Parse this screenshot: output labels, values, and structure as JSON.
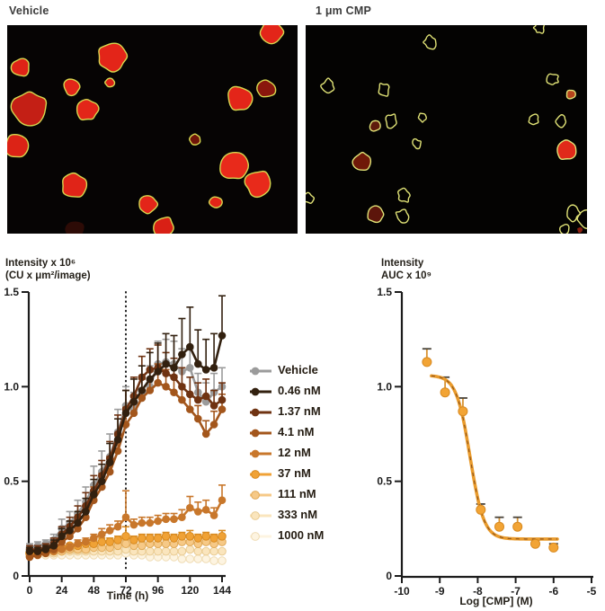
{
  "figure": {
    "panels": [
      {
        "title": "Vehicle",
        "background": "#060404",
        "outline_color": "#d6d74f",
        "blobs": [
          [
            117,
            35,
            16,
            "#e32519",
            1
          ],
          [
            294,
            8,
            13,
            "#e32519",
            1
          ],
          [
            15,
            47,
            10,
            "#df2317",
            1
          ],
          [
            72,
            69,
            9,
            "#e32519",
            1
          ],
          [
            114,
            64,
            5,
            "#d92015",
            1
          ],
          [
            25,
            93,
            19,
            "#c41f15",
            1
          ],
          [
            89,
            94,
            12,
            "#e32519",
            1
          ],
          [
            259,
            82,
            14,
            "#e32519",
            1
          ],
          [
            288,
            71,
            10,
            "#8a170d",
            1
          ],
          [
            10,
            135,
            13,
            "#dc2316",
            1
          ],
          [
            209,
            127,
            6,
            "#701509",
            1
          ],
          [
            75,
            179,
            14,
            "#e02418",
            1
          ],
          [
            252,
            157,
            15,
            "#e82a1b",
            1
          ],
          [
            279,
            176,
            14,
            "#e82a1b",
            1
          ],
          [
            157,
            199,
            10,
            "#e32519",
            1
          ],
          [
            232,
            197,
            7,
            "#e02418",
            1
          ],
          [
            174,
            225,
            12,
            "#d92015",
            1
          ],
          [
            75,
            228,
            11,
            "#2d0b06",
            0
          ]
        ]
      },
      {
        "title": "1 μm CMP",
        "background": "#040302",
        "outline_color": "#e0e276",
        "blobs": [
          [
            138,
            19,
            7,
            "",
            1
          ],
          [
            260,
            3,
            6,
            "",
            1
          ],
          [
            25,
            67,
            7,
            "",
            1
          ],
          [
            87,
            72,
            7,
            "",
            1
          ],
          [
            275,
            60,
            6,
            "",
            1
          ],
          [
            295,
            77,
            5,
            "#b5431c",
            1
          ],
          [
            77,
            112,
            6,
            "#5e1a0c",
            1
          ],
          [
            95,
            106,
            8,
            "",
            1
          ],
          [
            130,
            103,
            5,
            "",
            1
          ],
          [
            253,
            105,
            6,
            "",
            1
          ],
          [
            285,
            107,
            6,
            "",
            1
          ],
          [
            123,
            132,
            5,
            "",
            1
          ],
          [
            290,
            139,
            11,
            "#e02a1a",
            1
          ],
          [
            63,
            152,
            10,
            "#6f1808",
            1
          ],
          [
            110,
            190,
            7,
            "",
            1
          ],
          [
            2,
            192,
            6,
            "",
            1
          ],
          [
            78,
            211,
            9,
            "#5c150b",
            1
          ],
          [
            107,
            212,
            7,
            "",
            1
          ],
          [
            297,
            210,
            8,
            "",
            1
          ],
          [
            311,
            216,
            9,
            "",
            1
          ],
          [
            288,
            227,
            5,
            "",
            1
          ],
          [
            305,
            228,
            3,
            "#8a1f10",
            0
          ]
        ]
      }
    ]
  },
  "chart_data": [
    {
      "type": "line",
      "ylabel_lines": [
        "Intensity x 10⁶",
        "(CU x μm²/image)"
      ],
      "xlabel": "Time (h)",
      "xlim": [
        0,
        148
      ],
      "ylim": [
        0,
        1.5
      ],
      "xtick_vals": [
        0,
        24,
        48,
        72,
        96,
        120,
        144
      ],
      "xtick_labels": [
        "0",
        "24",
        "48",
        "72",
        "96",
        "120",
        "144"
      ],
      "ytick_vals": [
        0,
        0.5,
        1.0,
        1.5
      ],
      "ytick_labels": [
        "0",
        "0.5",
        "1.0",
        "1.5"
      ],
      "vline_x": 72,
      "grid": false,
      "legend_position": "right",
      "x": [
        0,
        6,
        12,
        18,
        24,
        30,
        36,
        42,
        48,
        54,
        60,
        66,
        72,
        78,
        84,
        90,
        96,
        102,
        108,
        114,
        120,
        126,
        132,
        138,
        144
      ],
      "series": [
        {
          "name": "Vehicle",
          "color": "#9b9b9b",
          "values": [
            0.15,
            0.16,
            0.17,
            0.19,
            0.25,
            0.28,
            0.33,
            0.39,
            0.48,
            0.55,
            0.63,
            0.76,
            0.9,
            0.88,
            0.94,
            1.0,
            1.12,
            1.13,
            1.12,
            1.08,
            1.1,
            0.97,
            0.92,
            0.97,
            1.0
          ],
          "err": [
            0.02,
            0.02,
            0.02,
            0.03,
            0.05,
            0.06,
            0.07,
            0.08,
            0.1,
            0.11,
            0.12,
            0.12,
            0.1,
            0.09,
            0.1,
            0.11,
            0.12,
            0.12,
            0.12,
            0.12,
            0.1,
            0.1,
            0.1,
            0.1,
            0.1
          ]
        },
        {
          "name": "0.46 nM",
          "color": "#32200f",
          "values": [
            0.13,
            0.13,
            0.14,
            0.16,
            0.21,
            0.24,
            0.28,
            0.34,
            0.43,
            0.5,
            0.6,
            0.72,
            0.86,
            0.92,
            0.98,
            1.04,
            1.08,
            1.12,
            1.1,
            1.17,
            1.21,
            1.12,
            1.09,
            1.1,
            1.27
          ],
          "err": [
            0.02,
            0.02,
            0.02,
            0.03,
            0.04,
            0.05,
            0.06,
            0.07,
            0.08,
            0.09,
            0.1,
            0.11,
            0.12,
            0.12,
            0.13,
            0.14,
            0.15,
            0.16,
            0.17,
            0.19,
            0.21,
            0.18,
            0.16,
            0.18,
            0.21
          ]
        },
        {
          "name": "1.37 nM",
          "color": "#6f3312",
          "values": [
            0.14,
            0.14,
            0.15,
            0.17,
            0.22,
            0.26,
            0.31,
            0.37,
            0.45,
            0.53,
            0.62,
            0.75,
            0.88,
            0.95,
            1.05,
            1.09,
            1.1,
            1.07,
            1.05,
            1.0,
            0.96,
            0.93,
            0.95,
            0.9,
            0.93
          ],
          "err": [
            0.02,
            0.02,
            0.02,
            0.03,
            0.04,
            0.05,
            0.06,
            0.07,
            0.08,
            0.08,
            0.09,
            0.1,
            0.1,
            0.1,
            0.11,
            0.11,
            0.12,
            0.11,
            0.1,
            0.1,
            0.09,
            0.09,
            0.09,
            0.08,
            0.09
          ]
        },
        {
          "name": "4.1 nM",
          "color": "#a3561c",
          "values": [
            0.1,
            0.11,
            0.12,
            0.14,
            0.18,
            0.21,
            0.25,
            0.31,
            0.4,
            0.47,
            0.55,
            0.66,
            0.8,
            0.86,
            0.94,
            0.98,
            1.02,
            1.0,
            0.97,
            0.93,
            0.88,
            0.83,
            0.75,
            0.8,
            0.88
          ],
          "err": [
            0.02,
            0.02,
            0.02,
            0.02,
            0.03,
            0.04,
            0.05,
            0.06,
            0.07,
            0.07,
            0.08,
            0.08,
            0.09,
            0.09,
            0.1,
            0.1,
            0.1,
            0.09,
            0.09,
            0.08,
            0.08,
            0.07,
            0.07,
            0.07,
            0.08
          ]
        },
        {
          "name": "12 nM",
          "color": "#c8772b",
          "values": [
            0.1,
            0.11,
            0.12,
            0.13,
            0.14,
            0.15,
            0.17,
            0.18,
            0.2,
            0.22,
            0.24,
            0.26,
            0.31,
            0.27,
            0.28,
            0.28,
            0.29,
            0.3,
            0.3,
            0.31,
            0.36,
            0.34,
            0.35,
            0.32,
            0.4
          ],
          "err": [
            0.01,
            0.01,
            0.01,
            0.01,
            0.02,
            0.02,
            0.02,
            0.02,
            0.02,
            0.03,
            0.03,
            0.03,
            0.14,
            0.03,
            0.03,
            0.03,
            0.03,
            0.03,
            0.03,
            0.04,
            0.06,
            0.05,
            0.05,
            0.04,
            0.08
          ]
        },
        {
          "name": "37 nM",
          "color": "#f0a236",
          "values": [
            0.12,
            0.13,
            0.13,
            0.14,
            0.15,
            0.16,
            0.16,
            0.17,
            0.17,
            0.18,
            0.18,
            0.19,
            0.21,
            0.19,
            0.2,
            0.2,
            0.2,
            0.21,
            0.2,
            0.21,
            0.21,
            0.2,
            0.21,
            0.2,
            0.21
          ],
          "err": [
            0.01,
            0.01,
            0.01,
            0.01,
            0.01,
            0.01,
            0.01,
            0.02,
            0.02,
            0.02,
            0.02,
            0.02,
            0.05,
            0.02,
            0.02,
            0.02,
            0.02,
            0.02,
            0.02,
            0.02,
            0.03,
            0.02,
            0.02,
            0.02,
            0.03
          ],
          "pstroke": "#d88a20"
        },
        {
          "name": "111 nM",
          "color": "#f6c987",
          "values": [
            0.12,
            0.12,
            0.13,
            0.13,
            0.13,
            0.14,
            0.14,
            0.14,
            0.15,
            0.15,
            0.15,
            0.16,
            0.17,
            0.16,
            0.16,
            0.17,
            0.17,
            0.17,
            0.17,
            0.18,
            0.18,
            0.17,
            0.18,
            0.17,
            0.18
          ],
          "err": [
            0.01,
            0.01,
            0.01,
            0.01,
            0.01,
            0.01,
            0.01,
            0.01,
            0.01,
            0.01,
            0.01,
            0.01,
            0.02,
            0.02,
            0.02,
            0.02,
            0.02,
            0.02,
            0.02,
            0.02,
            0.02,
            0.02,
            0.02,
            0.02,
            0.02
          ],
          "pstroke": "#e0a957"
        },
        {
          "name": "333 nM",
          "color": "#fae5bd",
          "values": [
            0.12,
            0.12,
            0.12,
            0.12,
            0.13,
            0.13,
            0.13,
            0.13,
            0.13,
            0.13,
            0.13,
            0.13,
            0.14,
            0.13,
            0.13,
            0.13,
            0.13,
            0.13,
            0.13,
            0.13,
            0.14,
            0.13,
            0.13,
            0.13,
            0.13
          ],
          "err": [
            0.01,
            0.01,
            0.01,
            0.01,
            0.01,
            0.01,
            0.01,
            0.01,
            0.01,
            0.01,
            0.01,
            0.01,
            0.01,
            0.01,
            0.01,
            0.01,
            0.01,
            0.01,
            0.01,
            0.01,
            0.01,
            0.01,
            0.01,
            0.01,
            0.01
          ],
          "pstroke": "#e9cb92"
        },
        {
          "name": "1000 nM",
          "color": "#fdf4e1",
          "values": [
            0.11,
            0.11,
            0.11,
            0.11,
            0.11,
            0.11,
            0.11,
            0.11,
            0.11,
            0.11,
            0.11,
            0.11,
            0.12,
            0.11,
            0.11,
            0.1,
            0.1,
            0.1,
            0.1,
            0.09,
            0.09,
            0.09,
            0.09,
            0.08,
            0.08
          ],
          "err": [
            0.01,
            0.01,
            0.01,
            0.01,
            0.01,
            0.01,
            0.01,
            0.01,
            0.01,
            0.01,
            0.01,
            0.01,
            0.01,
            0.01,
            0.01,
            0.01,
            0.01,
            0.01,
            0.01,
            0.01,
            0.01,
            0.01,
            0.01,
            0.01,
            0.01
          ],
          "pstroke": "#efdcb4"
        }
      ]
    },
    {
      "type": "scatter",
      "ylabel_lines": [
        "Intensity",
        "AUC x 10⁹"
      ],
      "xlabel": "Log [CMP] (M)",
      "xlim": [
        -10,
        -5
      ],
      "ylim": [
        0,
        1.5
      ],
      "xtick_vals": [
        -10,
        -9,
        -8,
        -7,
        -6,
        -5
      ],
      "xtick_labels": [
        "-10",
        "-9",
        "-8",
        "-7",
        "-6",
        "-5"
      ],
      "ytick_vals": [
        0,
        0.5,
        1.0,
        1.5
      ],
      "ytick_labels": [
        "0",
        "0.5",
        "1.0",
        "1.5"
      ],
      "grid": false,
      "points": {
        "x": [
          -9.34,
          -8.86,
          -8.39,
          -7.92,
          -7.43,
          -6.95,
          -6.48,
          -6.0
        ],
        "y": [
          1.13,
          0.97,
          0.87,
          0.35,
          0.26,
          0.26,
          0.17,
          0.15
        ],
        "err": [
          0.07,
          0.08,
          0.07,
          0.03,
          0.05,
          0.05,
          0.02,
          0.02
        ],
        "color": "#f2a435",
        "stroke": "#d88a20"
      },
      "fit": {
        "top": 1.06,
        "bottom": 0.195,
        "logic50": -8.2,
        "hill": 2.4,
        "x_start": -9.22,
        "x_end": -5.88,
        "curve_color": "#e99b2d",
        "dash_color": "#7a4416"
      },
      "errbar_color": "#d89434",
      "errcap_color": "#4a443a"
    }
  ],
  "colors": {
    "axis": "#1c1c1c",
    "text": "#242019"
  }
}
